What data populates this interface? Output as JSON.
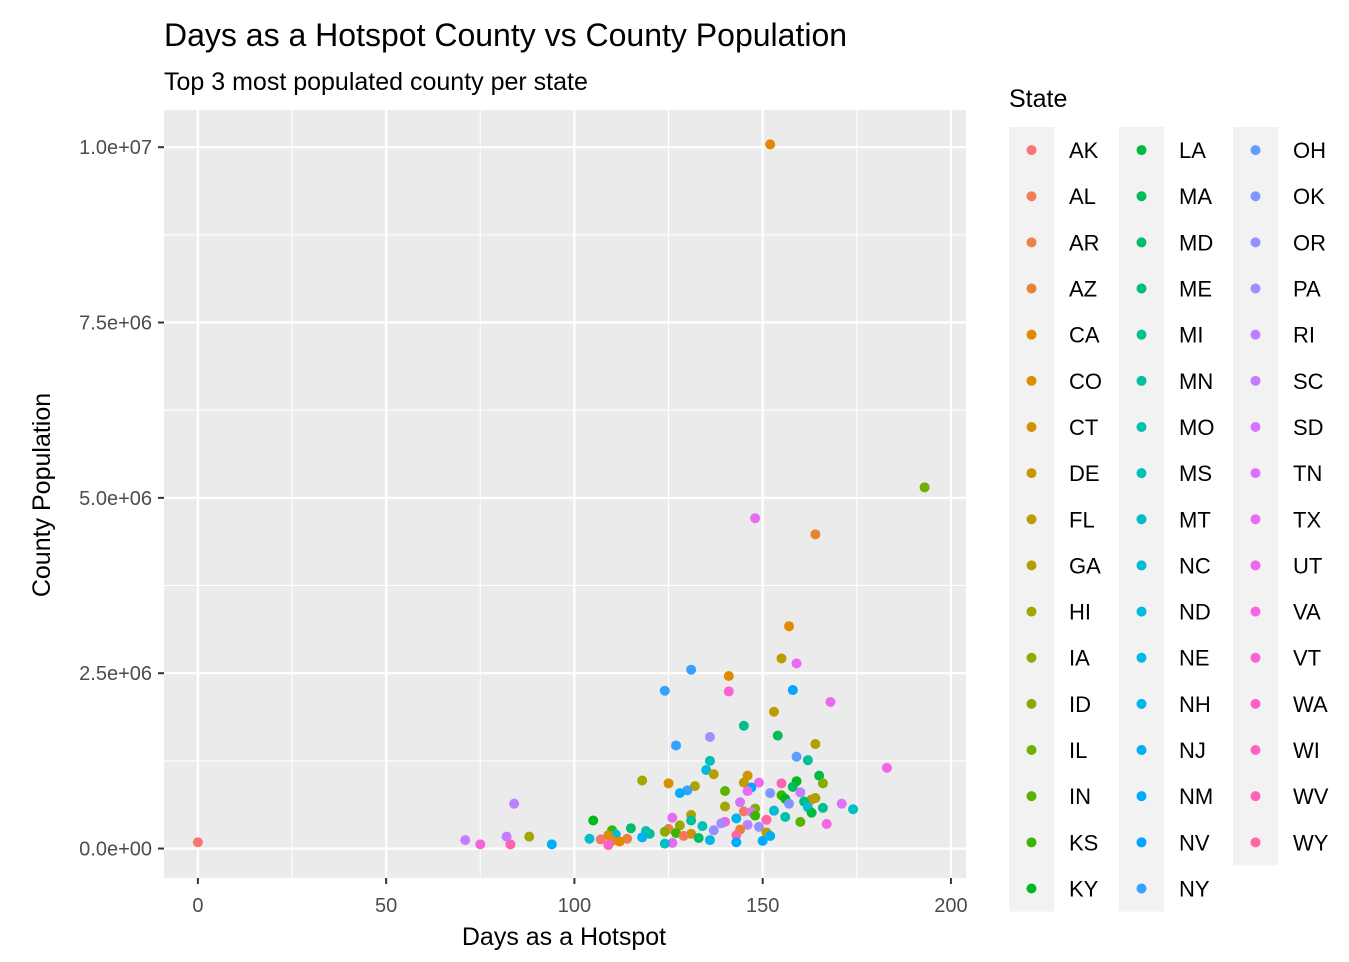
{
  "chart_data": {
    "type": "scatter",
    "title": "Days as a Hotspot County vs County Population",
    "subtitle": "Top 3 most populated county per state",
    "xlabel": "Days as a Hotspot",
    "ylabel": "County Population",
    "xlim": [
      -9,
      204
    ],
    "ylim": [
      -420000,
      10530000
    ],
    "x_ticks": [
      0,
      50,
      100,
      150,
      200
    ],
    "x_tick_labels": [
      "0",
      "50",
      "100",
      "150",
      "200"
    ],
    "y_ticks": [
      0,
      2500000,
      5000000,
      7500000,
      10000000
    ],
    "y_tick_labels": [
      "0.0e+00",
      "2.5e+06",
      "5.0e+06",
      "7.5e+06",
      "1.0e+07"
    ],
    "grid": true,
    "legend": {
      "title": "State",
      "placement": "right",
      "columns": 3,
      "entries": [
        {
          "name": "AK",
          "color": "#F8766D"
        },
        {
          "name": "AL",
          "color": "#F47A5C"
        },
        {
          "name": "AR",
          "color": "#EE7F48"
        },
        {
          "name": "AZ",
          "color": "#E8842F"
        },
        {
          "name": "CA",
          "color": "#E18A00"
        },
        {
          "name": "CO",
          "color": "#D89000"
        },
        {
          "name": "CT",
          "color": "#CF9400"
        },
        {
          "name": "DE",
          "color": "#C59900"
        },
        {
          "name": "FL",
          "color": "#BB9D00"
        },
        {
          "name": "GA",
          "color": "#AFA100"
        },
        {
          "name": "HI",
          "color": "#A3A500"
        },
        {
          "name": "IA",
          "color": "#95A900"
        },
        {
          "name": "ID",
          "color": "#85AD00"
        },
        {
          "name": "IL",
          "color": "#72B000"
        },
        {
          "name": "IN",
          "color": "#5BB300"
        },
        {
          "name": "KS",
          "color": "#39B600"
        },
        {
          "name": "KY",
          "color": "#00B81F"
        },
        {
          "name": "LA",
          "color": "#00BA42"
        },
        {
          "name": "MA",
          "color": "#00BC59"
        },
        {
          "name": "MD",
          "color": "#00BD6C"
        },
        {
          "name": "ME",
          "color": "#00BF7D"
        },
        {
          "name": "MI",
          "color": "#00C08D"
        },
        {
          "name": "MN",
          "color": "#00C09C"
        },
        {
          "name": "MO",
          "color": "#00C1AA"
        },
        {
          "name": "MS",
          "color": "#00C0B8"
        },
        {
          "name": "MT",
          "color": "#00BFC4"
        },
        {
          "name": "NC",
          "color": "#00BDD0"
        },
        {
          "name": "ND",
          "color": "#00BBDB"
        },
        {
          "name": "NE",
          "color": "#00B8E5"
        },
        {
          "name": "NH",
          "color": "#00B4EF"
        },
        {
          "name": "NJ",
          "color": "#00B0F6"
        },
        {
          "name": "NM",
          "color": "#00ABFD"
        },
        {
          "name": "NV",
          "color": "#00A5FF"
        },
        {
          "name": "NY",
          "color": "#35A2FF"
        },
        {
          "name": "OH",
          "color": "#619CFF"
        },
        {
          "name": "OK",
          "color": "#7F96FF"
        },
        {
          "name": "OR",
          "color": "#9590FF"
        },
        {
          "name": "PA",
          "color": "#A88AFF"
        },
        {
          "name": "RI",
          "color": "#B983FF"
        },
        {
          "name": "SC",
          "color": "#C77CFF"
        },
        {
          "name": "SD",
          "color": "#D376FF"
        },
        {
          "name": "TN",
          "color": "#DE70F9"
        },
        {
          "name": "TX",
          "color": "#E76BF3"
        },
        {
          "name": "UT",
          "color": "#EF67EB"
        },
        {
          "name": "VA",
          "color": "#F564E3"
        },
        {
          "name": "VT",
          "color": "#FA62DA"
        },
        {
          "name": "WA",
          "color": "#FD61D0"
        },
        {
          "name": "WI",
          "color": "#FF61C5"
        },
        {
          "name": "WV",
          "color": "#FF63B6"
        },
        {
          "name": "WY",
          "color": "#FF67A4"
        }
      ]
    },
    "points": [
      {
        "x": 152,
        "y": 10040000,
        "state": "CA"
      },
      {
        "x": 193,
        "y": 5150000,
        "state": "IL"
      },
      {
        "x": 148,
        "y": 4710000,
        "state": "TX"
      },
      {
        "x": 164,
        "y": 4480000,
        "state": "AZ"
      },
      {
        "x": 157,
        "y": 3170000,
        "state": "CA"
      },
      {
        "x": 155,
        "y": 2710000,
        "state": "FL"
      },
      {
        "x": 159,
        "y": 2640000,
        "state": "TX"
      },
      {
        "x": 131,
        "y": 2550000,
        "state": "NY"
      },
      {
        "x": 141,
        "y": 2460000,
        "state": "CA"
      },
      {
        "x": 158,
        "y": 2260000,
        "state": "NV"
      },
      {
        "x": 124,
        "y": 2250000,
        "state": "NY"
      },
      {
        "x": 141,
        "y": 2240000,
        "state": "WA"
      },
      {
        "x": 168,
        "y": 2090000,
        "state": "TX"
      },
      {
        "x": 153,
        "y": 1950000,
        "state": "FL"
      },
      {
        "x": 145,
        "y": 1750000,
        "state": "MI"
      },
      {
        "x": 154,
        "y": 1610000,
        "state": "MA"
      },
      {
        "x": 136,
        "y": 1590000,
        "state": "PA"
      },
      {
        "x": 127,
        "y": 1470000,
        "state": "NY"
      },
      {
        "x": 164,
        "y": 1490000,
        "state": "GA"
      },
      {
        "x": 159,
        "y": 1310000,
        "state": "OH"
      },
      {
        "x": 162,
        "y": 1260000,
        "state": "MN"
      },
      {
        "x": 136,
        "y": 1250000,
        "state": "MS"
      },
      {
        "x": 183,
        "y": 1150000,
        "state": "VA"
      },
      {
        "x": 135,
        "y": 1120000,
        "state": "NE"
      },
      {
        "x": 137,
        "y": 1060000,
        "state": "FL"
      },
      {
        "x": 165,
        "y": 1040000,
        "state": "LA"
      },
      {
        "x": 146,
        "y": 1040000,
        "state": "CT"
      },
      {
        "x": 118,
        "y": 970000,
        "state": "HI"
      },
      {
        "x": 159,
        "y": 960000,
        "state": "KY"
      },
      {
        "x": 145,
        "y": 940000,
        "state": "DE"
      },
      {
        "x": 149,
        "y": 940000,
        "state": "UT"
      },
      {
        "x": 166,
        "y": 930000,
        "state": "ID"
      },
      {
        "x": 155,
        "y": 930000,
        "state": "WV"
      },
      {
        "x": 125,
        "y": 930000,
        "state": "CO"
      },
      {
        "x": 132,
        "y": 890000,
        "state": "GA"
      },
      {
        "x": 158,
        "y": 880000,
        "state": "MA"
      },
      {
        "x": 147,
        "y": 870000,
        "state": "NV"
      },
      {
        "x": 130,
        "y": 830000,
        "state": "NY"
      },
      {
        "x": 140,
        "y": 820000,
        "state": "IN"
      },
      {
        "x": 146,
        "y": 820000,
        "state": "TX"
      },
      {
        "x": 128,
        "y": 790000,
        "state": "NJ"
      },
      {
        "x": 152,
        "y": 790000,
        "state": "OK"
      },
      {
        "x": 160,
        "y": 800000,
        "state": "SC"
      },
      {
        "x": 155,
        "y": 760000,
        "state": "KS"
      },
      {
        "x": 164,
        "y": 720000,
        "state": "HI"
      },
      {
        "x": 156,
        "y": 710000,
        "state": "KY"
      },
      {
        "x": 163,
        "y": 700000,
        "state": "FL"
      },
      {
        "x": 161,
        "y": 670000,
        "state": "ME"
      },
      {
        "x": 144,
        "y": 660000,
        "state": "SD"
      },
      {
        "x": 157,
        "y": 640000,
        "state": "OK"
      },
      {
        "x": 171,
        "y": 640000,
        "state": "TN"
      },
      {
        "x": 84,
        "y": 640000,
        "state": "RI"
      },
      {
        "x": 140,
        "y": 600000,
        "state": "HI"
      },
      {
        "x": 162,
        "y": 590000,
        "state": "ND"
      },
      {
        "x": 166,
        "y": 580000,
        "state": "MI"
      },
      {
        "x": 174,
        "y": 560000,
        "state": "MT"
      },
      {
        "x": 148,
        "y": 570000,
        "state": "ID"
      },
      {
        "x": 153,
        "y": 540000,
        "state": "NC"
      },
      {
        "x": 145,
        "y": 530000,
        "state": "AL"
      },
      {
        "x": 147,
        "y": 520000,
        "state": "TN"
      },
      {
        "x": 163,
        "y": 510000,
        "state": "LA"
      },
      {
        "x": 131,
        "y": 480000,
        "state": "GA"
      },
      {
        "x": 148,
        "y": 470000,
        "state": "KS"
      },
      {
        "x": 156,
        "y": 450000,
        "state": "MO"
      },
      {
        "x": 126,
        "y": 440000,
        "state": "TX"
      },
      {
        "x": 143,
        "y": 430000,
        "state": "NH"
      },
      {
        "x": 151,
        "y": 410000,
        "state": "WY"
      },
      {
        "x": 131,
        "y": 400000,
        "state": "MN"
      },
      {
        "x": 105,
        "y": 400000,
        "state": "KY"
      },
      {
        "x": 140,
        "y": 380000,
        "state": "VT"
      },
      {
        "x": 160,
        "y": 380000,
        "state": "IN"
      },
      {
        "x": 167,
        "y": 350000,
        "state": "VA"
      },
      {
        "x": 139,
        "y": 360000,
        "state": "PA"
      },
      {
        "x": 146,
        "y": 340000,
        "state": "RI"
      },
      {
        "x": 128,
        "y": 330000,
        "state": "IA"
      },
      {
        "x": 134,
        "y": 320000,
        "state": "MS"
      },
      {
        "x": 149,
        "y": 310000,
        "state": "OR"
      },
      {
        "x": 115,
        "y": 290000,
        "state": "MD"
      },
      {
        "x": 125,
        "y": 280000,
        "state": "AR"
      },
      {
        "x": 144,
        "y": 270000,
        "state": "AZ"
      },
      {
        "x": 137,
        "y": 260000,
        "state": "OR"
      },
      {
        "x": 110,
        "y": 260000,
        "state": "KS"
      },
      {
        "x": 119,
        "y": 250000,
        "state": "MS"
      },
      {
        "x": 124,
        "y": 240000,
        "state": "ID"
      },
      {
        "x": 151,
        "y": 230000,
        "state": "DE"
      },
      {
        "x": 127,
        "y": 220000,
        "state": "KS"
      },
      {
        "x": 131,
        "y": 210000,
        "state": "CT"
      },
      {
        "x": 120,
        "y": 210000,
        "state": "MN"
      },
      {
        "x": 111,
        "y": 200000,
        "state": "ND"
      },
      {
        "x": 109,
        "y": 190000,
        "state": "CO"
      },
      {
        "x": 143,
        "y": 190000,
        "state": "WY"
      },
      {
        "x": 152,
        "y": 180000,
        "state": "NJ"
      },
      {
        "x": 129,
        "y": 180000,
        "state": "AL"
      },
      {
        "x": 88,
        "y": 170000,
        "state": "HI"
      },
      {
        "x": 82,
        "y": 170000,
        "state": "SC"
      },
      {
        "x": 118,
        "y": 160000,
        "state": "NH"
      },
      {
        "x": 133,
        "y": 150000,
        "state": "MD"
      },
      {
        "x": 114,
        "y": 140000,
        "state": "AR"
      },
      {
        "x": 104,
        "y": 140000,
        "state": "NC"
      },
      {
        "x": 107,
        "y": 130000,
        "state": "AK"
      },
      {
        "x": 71,
        "y": 120000,
        "state": "SC"
      },
      {
        "x": 136,
        "y": 120000,
        "state": "NE"
      },
      {
        "x": 150,
        "y": 110000,
        "state": "NM"
      },
      {
        "x": 110,
        "y": 110000,
        "state": "AZ"
      },
      {
        "x": 112,
        "y": 100000,
        "state": "CA"
      },
      {
        "x": 143,
        "y": 90000,
        "state": "NM"
      },
      {
        "x": 0,
        "y": 90000,
        "state": "AK"
      },
      {
        "x": 126,
        "y": 80000,
        "state": "TX"
      },
      {
        "x": 124,
        "y": 70000,
        "state": "MT"
      },
      {
        "x": 75,
        "y": 60000,
        "state": "VT"
      },
      {
        "x": 83,
        "y": 60000,
        "state": "WV"
      },
      {
        "x": 94,
        "y": 60000,
        "state": "NJ"
      },
      {
        "x": 109,
        "y": 50000,
        "state": "WA"
      }
    ]
  }
}
